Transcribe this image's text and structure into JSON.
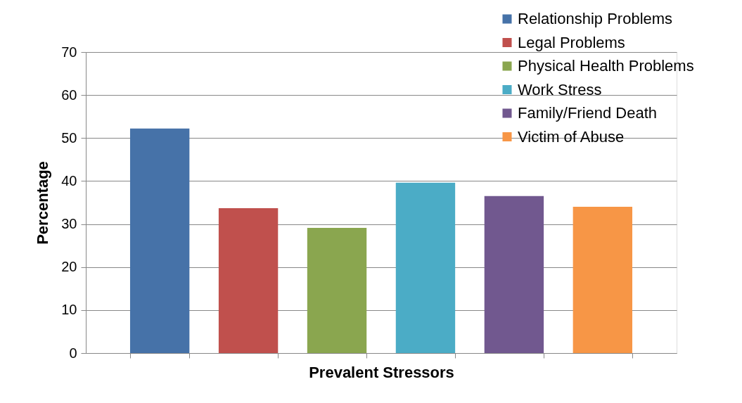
{
  "chart_data": {
    "type": "bar",
    "xlabel": "Prevalent Stressors",
    "ylabel": "Percentage",
    "categories": [
      null,
      null,
      null,
      null,
      null,
      null
    ],
    "series": [
      {
        "name": "Relationship Problems",
        "color": "#4672a8",
        "values": [
          52.2,
          null,
          null,
          null,
          null,
          null
        ]
      },
      {
        "name": "Legal Problems",
        "color": "#c0504d",
        "values": [
          null,
          33.7,
          null,
          null,
          null,
          null
        ]
      },
      {
        "name": "Physical Health Problems",
        "color": "#8aa64f",
        "values": [
          null,
          null,
          29.1,
          null,
          null,
          null
        ]
      },
      {
        "name": "Work Stress",
        "color": "#4bacc6",
        "values": [
          null,
          null,
          null,
          39.6,
          null,
          null
        ]
      },
      {
        "name": "Family/Friend Death",
        "color": "#71588f",
        "values": [
          null,
          null,
          null,
          null,
          36.5,
          null
        ]
      },
      {
        "name": "Victim of Abuse",
        "color": "#f79646",
        "values": [
          null,
          null,
          null,
          null,
          null,
          34.0
        ]
      }
    ],
    "ylim": [
      0,
      70
    ],
    "yticks": [
      0,
      10,
      20,
      30,
      40,
      50,
      60,
      70
    ],
    "grid": "y",
    "legend": "top right"
  }
}
